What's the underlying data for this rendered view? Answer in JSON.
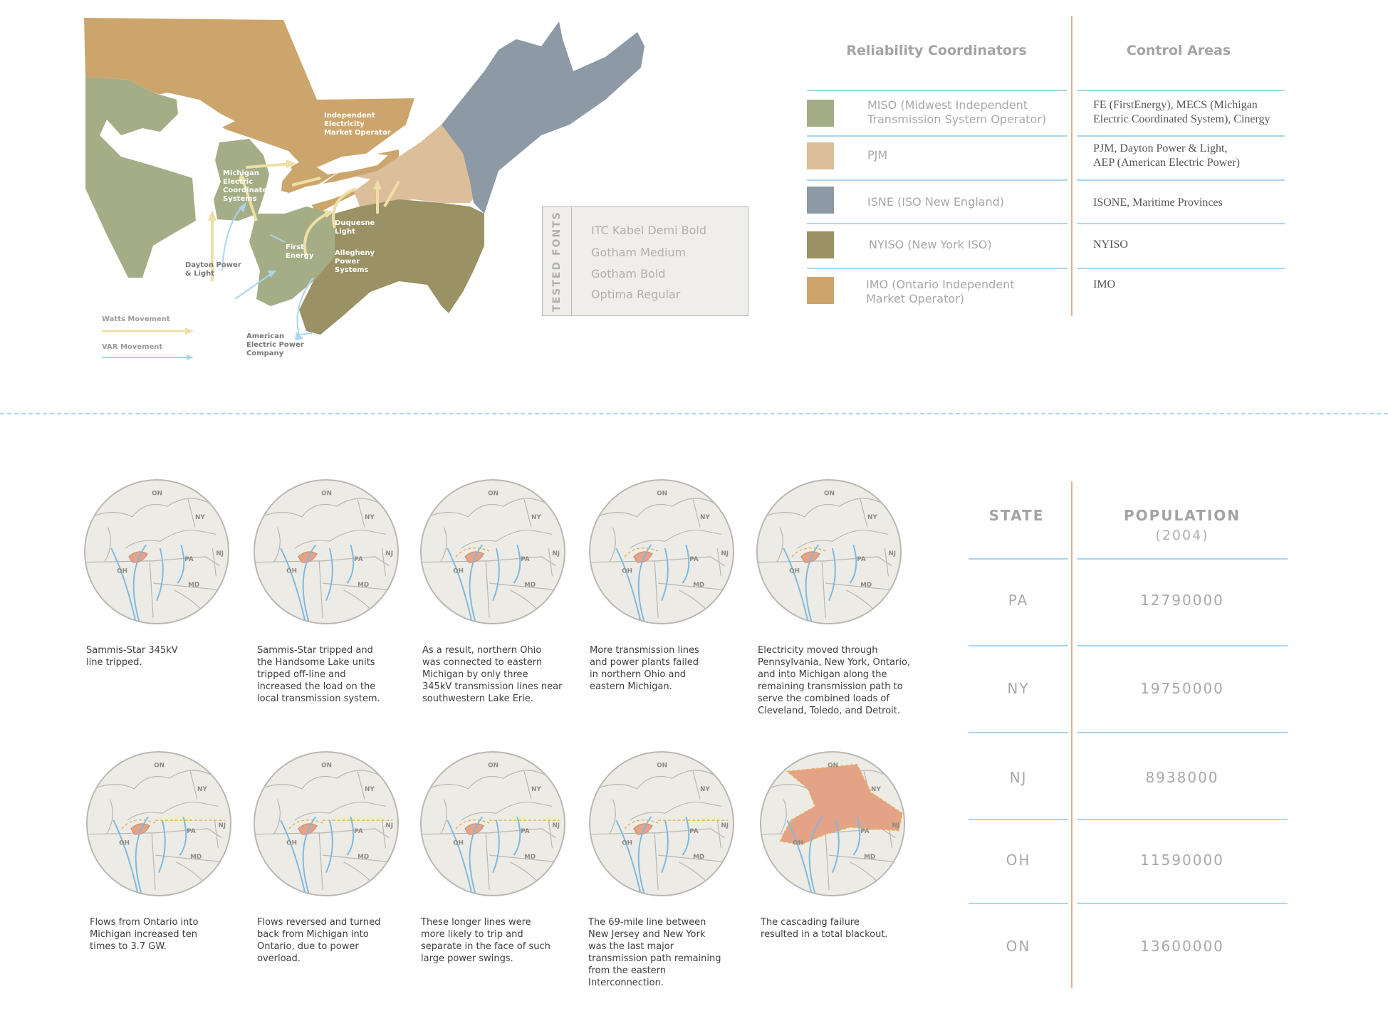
{
  "map": {
    "labels": {
      "imo": "Independent\nElectricity\nMarket Operator",
      "michigan": "Michigan\nElectric\nCoordinated\nSystems",
      "duquesne": "Duquesne\nLight",
      "first_energy": "First\nEnergy",
      "allegheny": "Allegheny\nPower\nSystems",
      "dayton": "Dayton Power\n& Light",
      "aep": "American\nElectric Power\nCompany"
    },
    "legend": {
      "watts": "Watts Movement",
      "var": "VAR Movement"
    },
    "colors": {
      "ontario": "#cca56c",
      "miso": "#a5ad86",
      "pjm": "#dcbe9b",
      "isne": "#8d99a4",
      "nyiso": "#9a9164",
      "lakes": "#ffffff",
      "watts_arrow": "#eedfa6",
      "var_arrow": "#a9d6ec"
    }
  },
  "tested_fonts": {
    "title": "TESTED FONTS",
    "items": [
      "ITC Kabel Demi Bold",
      "Gotham Medium",
      "Gotham Bold",
      "Optima Regular"
    ]
  },
  "coordinators": {
    "head_rc": "Reliability Coordinators",
    "head_ca": "Control Areas",
    "rows": [
      {
        "color": "#a5ad86",
        "rc": "MISO (Midwest Independent\nTransmission System Operator)",
        "ca": "FE (FirstEnergy), MECS (Michigan\nElectric Coordinated System), Cinergy"
      },
      {
        "color": "#dcbe9b",
        "rc": "PJM",
        "ca": "PJM, Dayton Power & Light,\nAEP (American Electric Power)"
      },
      {
        "color": "#8d99a4",
        "rc": "ISNE (ISO New England)",
        "ca": "ISONE, Maritime Provinces"
      },
      {
        "color": "#9a9164",
        "rc": "NYISO (New York ISO)",
        "ca": "NYISO"
      },
      {
        "color": "#cca56c",
        "rc": "IMO (Ontario Independent\nMarket Operator)",
        "ca": "IMO"
      }
    ]
  },
  "sequence": {
    "region_labels": {
      "on": "ON",
      "ny": "NY",
      "pa": "PA",
      "nj": "NJ",
      "oh": "OH",
      "md": "MD"
    },
    "steps": [
      {
        "caption": "Sammis-Star 345kV\nline tripped."
      },
      {
        "caption": "Sammis-Star tripped and\nthe Handsome Lake units\ntripped off-line and\nincreased the load on the\nlocal transmission system."
      },
      {
        "caption": "As a result, northern Ohio\nwas connected to eastern\nMichigan by only three\n345kV transmission lines near\nsouthwestern Lake Erie."
      },
      {
        "caption": "More transmission lines\nand power plants failed\nin northern Ohio and\neastern Michigan."
      },
      {
        "caption": "Electricity moved through\nPennsylvania, New York, Ontario,\nand into Michigan along the\nremaining transmission path to\nserve the combined loads of\nCleveland, Toledo, and Detroit."
      },
      {
        "caption": "Flows from Ontario into\nMichigan increased ten\ntimes to 3.7 GW."
      },
      {
        "caption": "Flows reversed and turned\nback from Michigan into\nOntario, due to power\noverload."
      },
      {
        "caption": "These longer lines were\nmore likely to trip and\nseparate in the face of such\nlarge power swings."
      },
      {
        "caption": "The 69-mile line between\nNew Jersey and New York\nwas the last major\ntransmission path remaining\nfrom the eastern\nInterconnection."
      },
      {
        "caption": "The cascading failure\nresulted in a total blackout."
      }
    ]
  },
  "population_table": {
    "head_state": "STATE",
    "head_pop": "POPULATION",
    "head_pop_sub": "(2004)",
    "rows": [
      {
        "state": "PA",
        "population": "12790000"
      },
      {
        "state": "NY",
        "population": "19750000"
      },
      {
        "state": "NJ",
        "population": "8938000"
      },
      {
        "state": "OH",
        "population": "11590000"
      },
      {
        "state": "ON",
        "population": "13600000"
      }
    ]
  }
}
